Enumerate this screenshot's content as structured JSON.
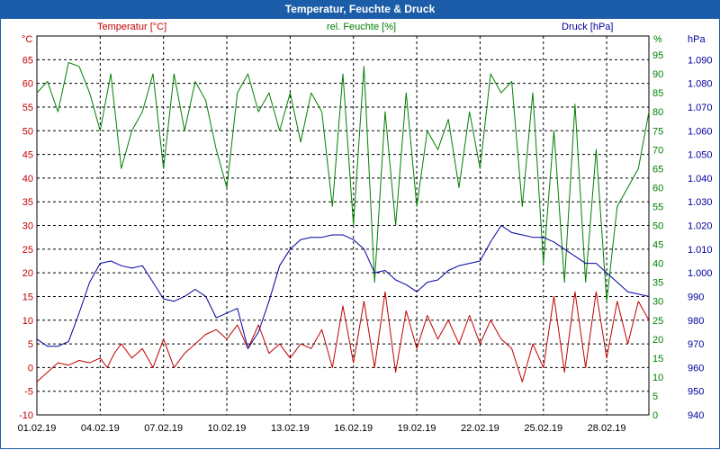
{
  "window": {
    "title": "Temperatur, Feuchte & Druck"
  },
  "colors": {
    "temperature": "#c00000",
    "humidity": "#008000",
    "pressure": "#00009c",
    "grid": "#000000",
    "titlebar": "#1b5da8"
  },
  "chart_data": {
    "type": "line",
    "headers": {
      "temperature": "Temperatur [°C]",
      "humidity": "rel. Feuchte [%]",
      "pressure": "Druck [hPa]"
    },
    "units": {
      "left": "°C",
      "right1": "%",
      "right2": "hPa"
    },
    "x_range": [
      "2019-02-01",
      "2019-03-02"
    ],
    "x_ticks": [
      "01.02.19",
      "04.02.19",
      "07.02.19",
      "10.02.19",
      "13.02.19",
      "16.02.19",
      "19.02.19",
      "22.02.19",
      "25.02.19",
      "28.02.19"
    ],
    "axes": {
      "temperature": {
        "ylim": [
          -10,
          70
        ],
        "ticks": [
          -10,
          -5,
          0,
          5,
          10,
          15,
          20,
          25,
          30,
          35,
          40,
          45,
          50,
          55,
          60,
          65
        ]
      },
      "humidity": {
        "ylim": [
          0,
          100
        ],
        "ticks": [
          0,
          5,
          10,
          15,
          20,
          25,
          30,
          35,
          40,
          45,
          50,
          55,
          60,
          65,
          70,
          75,
          80,
          85,
          90,
          95
        ]
      },
      "pressure": {
        "ylim": [
          940,
          1100
        ],
        "ticks": [
          "940",
          "950",
          "960",
          "970",
          "980",
          "990",
          "1.000",
          "1.010",
          "1.020",
          "1.030",
          "1.040",
          "1.050",
          "1.060",
          "1.070",
          "1.080",
          "1.090"
        ]
      }
    },
    "series": [
      {
        "name": "Temperatur [°C]",
        "axis": "temperature",
        "points": [
          [
            "2019-02-01T00:00",
            -3
          ],
          [
            "2019-02-01T12:00",
            -1
          ],
          [
            "2019-02-02T00:00",
            1
          ],
          [
            "2019-02-02T12:00",
            0.5
          ],
          [
            "2019-02-03T00:00",
            1.5
          ],
          [
            "2019-02-03T12:00",
            1
          ],
          [
            "2019-02-04T00:00",
            2
          ],
          [
            "2019-02-04T08:00",
            0
          ],
          [
            "2019-02-04T16:00",
            3
          ],
          [
            "2019-02-05T00:00",
            5
          ],
          [
            "2019-02-05T12:00",
            2
          ],
          [
            "2019-02-06T00:00",
            4
          ],
          [
            "2019-02-06T12:00",
            0
          ],
          [
            "2019-02-07T00:00",
            6
          ],
          [
            "2019-02-07T12:00",
            0
          ],
          [
            "2019-02-08T00:00",
            3
          ],
          [
            "2019-02-08T12:00",
            5
          ],
          [
            "2019-02-09T00:00",
            7
          ],
          [
            "2019-02-09T12:00",
            8
          ],
          [
            "2019-02-10T00:00",
            6
          ],
          [
            "2019-02-10T12:00",
            9
          ],
          [
            "2019-02-11T00:00",
            4
          ],
          [
            "2019-02-11T12:00",
            9
          ],
          [
            "2019-02-12T00:00",
            3
          ],
          [
            "2019-02-12T12:00",
            5
          ],
          [
            "2019-02-13T00:00",
            2
          ],
          [
            "2019-02-13T12:00",
            5
          ],
          [
            "2019-02-14T00:00",
            4
          ],
          [
            "2019-02-14T12:00",
            8
          ],
          [
            "2019-02-15T00:00",
            0
          ],
          [
            "2019-02-15T12:00",
            13
          ],
          [
            "2019-02-16T00:00",
            1
          ],
          [
            "2019-02-16T12:00",
            14
          ],
          [
            "2019-02-17T00:00",
            0
          ],
          [
            "2019-02-17T12:00",
            16
          ],
          [
            "2019-02-18T00:00",
            -1
          ],
          [
            "2019-02-18T12:00",
            12
          ],
          [
            "2019-02-19T00:00",
            4
          ],
          [
            "2019-02-19T12:00",
            11
          ],
          [
            "2019-02-20T00:00",
            6
          ],
          [
            "2019-02-20T12:00",
            10
          ],
          [
            "2019-02-21T00:00",
            5
          ],
          [
            "2019-02-21T12:00",
            11
          ],
          [
            "2019-02-22T00:00",
            5
          ],
          [
            "2019-02-22T12:00",
            10
          ],
          [
            "2019-02-23T00:00",
            6
          ],
          [
            "2019-02-23T12:00",
            4
          ],
          [
            "2019-02-24T00:00",
            -3
          ],
          [
            "2019-02-24T12:00",
            5
          ],
          [
            "2019-02-25T00:00",
            0
          ],
          [
            "2019-02-25T12:00",
            15
          ],
          [
            "2019-02-26T00:00",
            -1
          ],
          [
            "2019-02-26T12:00",
            16
          ],
          [
            "2019-02-27T00:00",
            0
          ],
          [
            "2019-02-27T12:00",
            16
          ],
          [
            "2019-02-28T00:00",
            2
          ],
          [
            "2019-02-28T12:00",
            14
          ],
          [
            "2019-03-01T00:00",
            5
          ],
          [
            "2019-03-01T12:00",
            14
          ],
          [
            "2019-03-02T00:00",
            10
          ]
        ]
      },
      {
        "name": "rel. Feuchte [%]",
        "axis": "humidity",
        "points": [
          [
            "2019-02-01T00:00",
            85
          ],
          [
            "2019-02-01T12:00",
            88
          ],
          [
            "2019-02-02T00:00",
            80
          ],
          [
            "2019-02-02T12:00",
            93
          ],
          [
            "2019-02-03T00:00",
            92
          ],
          [
            "2019-02-03T12:00",
            85
          ],
          [
            "2019-02-04T00:00",
            75
          ],
          [
            "2019-02-04T12:00",
            90
          ],
          [
            "2019-02-05T00:00",
            65
          ],
          [
            "2019-02-05T12:00",
            75
          ],
          [
            "2019-02-06T00:00",
            80
          ],
          [
            "2019-02-06T12:00",
            90
          ],
          [
            "2019-02-07T00:00",
            65
          ],
          [
            "2019-02-07T12:00",
            90
          ],
          [
            "2019-02-08T00:00",
            75
          ],
          [
            "2019-02-08T12:00",
            88
          ],
          [
            "2019-02-09T00:00",
            83
          ],
          [
            "2019-02-09T12:00",
            70
          ],
          [
            "2019-02-10T00:00",
            60
          ],
          [
            "2019-02-10T12:00",
            85
          ],
          [
            "2019-02-11T00:00",
            90
          ],
          [
            "2019-02-11T12:00",
            80
          ],
          [
            "2019-02-12T00:00",
            85
          ],
          [
            "2019-02-12T12:00",
            75
          ],
          [
            "2019-02-13T00:00",
            85
          ],
          [
            "2019-02-13T12:00",
            72
          ],
          [
            "2019-02-14T00:00",
            85
          ],
          [
            "2019-02-14T12:00",
            80
          ],
          [
            "2019-02-15T00:00",
            55
          ],
          [
            "2019-02-15T12:00",
            90
          ],
          [
            "2019-02-16T00:00",
            50
          ],
          [
            "2019-02-16T12:00",
            92
          ],
          [
            "2019-02-17T00:00",
            35
          ],
          [
            "2019-02-17T12:00",
            80
          ],
          [
            "2019-02-18T00:00",
            50
          ],
          [
            "2019-02-18T12:00",
            85
          ],
          [
            "2019-02-19T00:00",
            55
          ],
          [
            "2019-02-19T12:00",
            75
          ],
          [
            "2019-02-20T00:00",
            70
          ],
          [
            "2019-02-20T12:00",
            78
          ],
          [
            "2019-02-21T00:00",
            60
          ],
          [
            "2019-02-21T12:00",
            80
          ],
          [
            "2019-02-22T00:00",
            65
          ],
          [
            "2019-02-22T12:00",
            90
          ],
          [
            "2019-02-23T00:00",
            85
          ],
          [
            "2019-02-23T12:00",
            88
          ],
          [
            "2019-02-24T00:00",
            55
          ],
          [
            "2019-02-24T12:00",
            85
          ],
          [
            "2019-02-25T00:00",
            40
          ],
          [
            "2019-02-25T12:00",
            75
          ],
          [
            "2019-02-26T00:00",
            35
          ],
          [
            "2019-02-26T12:00",
            82
          ],
          [
            "2019-02-27T00:00",
            35
          ],
          [
            "2019-02-27T12:00",
            70
          ],
          [
            "2019-02-28T00:00",
            30
          ],
          [
            "2019-02-28T12:00",
            55
          ],
          [
            "2019-03-01T00:00",
            60
          ],
          [
            "2019-03-01T12:00",
            65
          ],
          [
            "2019-03-02T00:00",
            80
          ]
        ]
      },
      {
        "name": "Druck [hPa]",
        "axis": "pressure",
        "points": [
          [
            "2019-02-01T00:00",
            972
          ],
          [
            "2019-02-01T12:00",
            969
          ],
          [
            "2019-02-02T00:00",
            969
          ],
          [
            "2019-02-02T12:00",
            971
          ],
          [
            "2019-02-03T00:00",
            983
          ],
          [
            "2019-02-03T12:00",
            996
          ],
          [
            "2019-02-04T00:00",
            1004
          ],
          [
            "2019-02-04T12:00",
            1005
          ],
          [
            "2019-02-05T00:00",
            1003
          ],
          [
            "2019-02-05T12:00",
            1002
          ],
          [
            "2019-02-06T00:00",
            1003
          ],
          [
            "2019-02-06T12:00",
            996
          ],
          [
            "2019-02-07T00:00",
            989
          ],
          [
            "2019-02-07T12:00",
            988
          ],
          [
            "2019-02-08T00:00",
            990
          ],
          [
            "2019-02-08T12:00",
            993
          ],
          [
            "2019-02-09T00:00",
            990
          ],
          [
            "2019-02-09T12:00",
            981
          ],
          [
            "2019-02-10T00:00",
            983
          ],
          [
            "2019-02-10T12:00",
            985
          ],
          [
            "2019-02-11T00:00",
            968
          ],
          [
            "2019-02-11T12:00",
            975
          ],
          [
            "2019-02-12T00:00",
            988
          ],
          [
            "2019-02-12T12:00",
            1003
          ],
          [
            "2019-02-13T00:00",
            1010
          ],
          [
            "2019-02-13T12:00",
            1014
          ],
          [
            "2019-02-14T00:00",
            1015
          ],
          [
            "2019-02-14T12:00",
            1015
          ],
          [
            "2019-02-15T00:00",
            1016
          ],
          [
            "2019-02-15T12:00",
            1016
          ],
          [
            "2019-02-16T00:00",
            1014
          ],
          [
            "2019-02-16T12:00",
            1010
          ],
          [
            "2019-02-17T00:00",
            1000
          ],
          [
            "2019-02-17T12:00",
            1001
          ],
          [
            "2019-02-18T00:00",
            997
          ],
          [
            "2019-02-18T12:00",
            995
          ],
          [
            "2019-02-19T00:00",
            992
          ],
          [
            "2019-02-19T12:00",
            996
          ],
          [
            "2019-02-20T00:00",
            997
          ],
          [
            "2019-02-20T12:00",
            1001
          ],
          [
            "2019-02-21T00:00",
            1003
          ],
          [
            "2019-02-21T12:00",
            1004
          ],
          [
            "2019-02-22T00:00",
            1005
          ],
          [
            "2019-02-22T12:00",
            1013
          ],
          [
            "2019-02-23T00:00",
            1020
          ],
          [
            "2019-02-23T12:00",
            1017
          ],
          [
            "2019-02-24T00:00",
            1016
          ],
          [
            "2019-02-24T12:00",
            1015
          ],
          [
            "2019-02-25T00:00",
            1015
          ],
          [
            "2019-02-25T12:00",
            1013
          ],
          [
            "2019-02-26T00:00",
            1010
          ],
          [
            "2019-02-26T12:00",
            1007
          ],
          [
            "2019-02-27T00:00",
            1004
          ],
          [
            "2019-02-27T12:00",
            1004
          ],
          [
            "2019-02-28T00:00",
            1000
          ],
          [
            "2019-02-28T12:00",
            996
          ],
          [
            "2019-03-01T00:00",
            992
          ],
          [
            "2019-03-01T12:00",
            991
          ],
          [
            "2019-03-02T00:00",
            990
          ]
        ]
      }
    ]
  }
}
